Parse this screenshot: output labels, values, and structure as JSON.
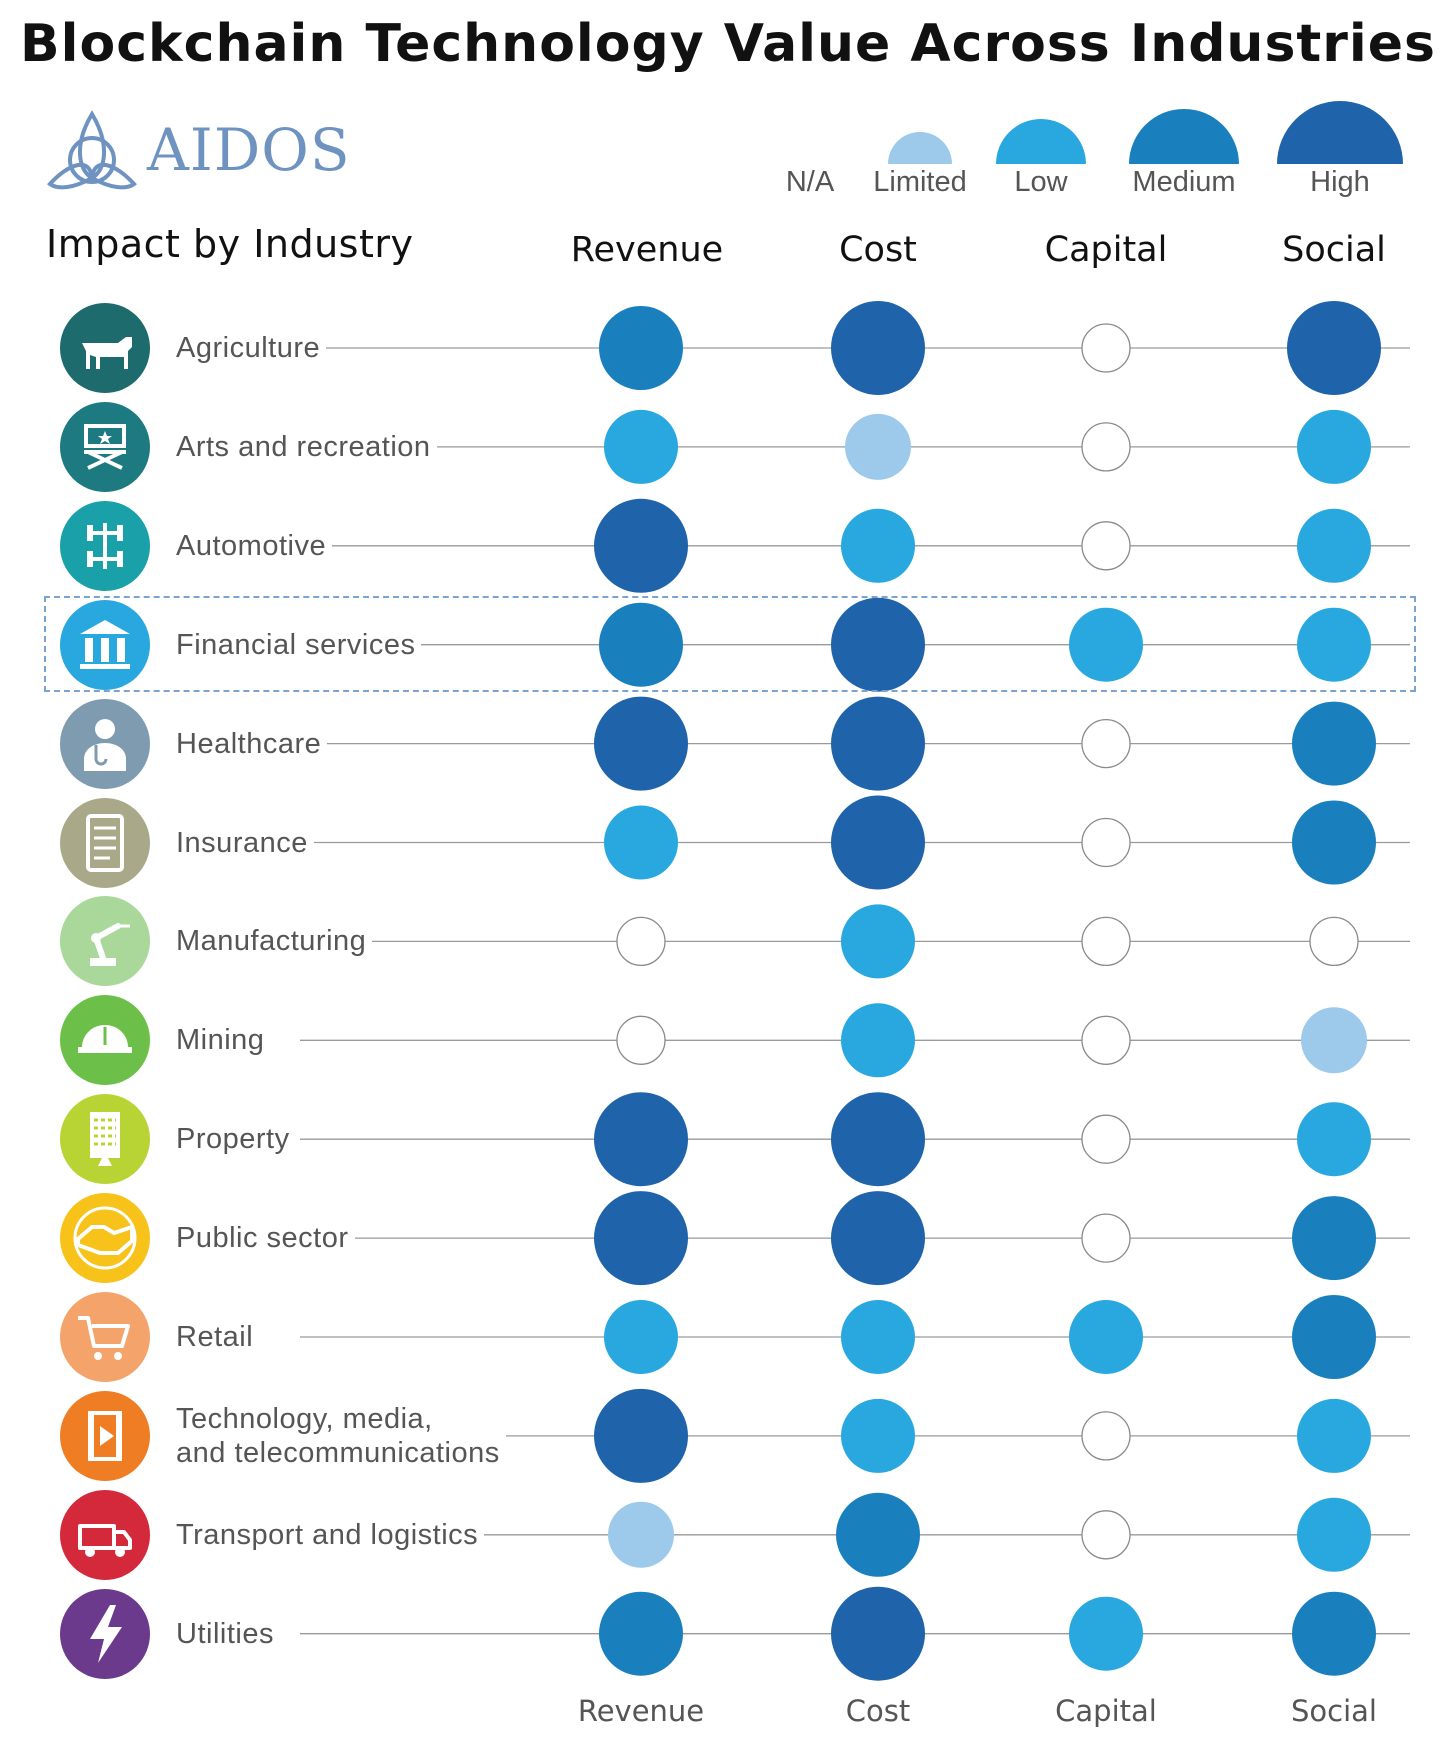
{
  "title": "Blockchain Technology Value Across Industries",
  "logo": {
    "text": "AIDOS"
  },
  "subtitle": "Impact by Industry",
  "legend": [
    {
      "label": "N/A",
      "level": 0
    },
    {
      "label": "Limited",
      "level": 1
    },
    {
      "label": "Low",
      "level": 2
    },
    {
      "label": "Medium",
      "level": 3
    },
    {
      "label": "High",
      "level": 4
    }
  ],
  "colors": {
    "na_fill": "#ffffff",
    "na_stroke": "#8a8a8a",
    "limited": "#9dcaea",
    "low": "#29a8e0",
    "medium": "#1a80bd",
    "high": "#1f63aa",
    "line": "#9a9a9a",
    "highlight": "#7aa3cf"
  },
  "chart_data": {
    "type": "table",
    "title": "Blockchain Technology Value Across Industries",
    "columns": [
      "Revenue",
      "Cost",
      "Capital",
      "Social"
    ],
    "scale": [
      "N/A",
      "Limited",
      "Low",
      "Medium",
      "High"
    ],
    "highlighted_row": "Financial services",
    "rows": [
      {
        "industry": "Agriculture",
        "icon": "cow-icon",
        "icon_color": "#1e6b6e",
        "values": [
          "Medium",
          "High",
          "N/A",
          "High"
        ]
      },
      {
        "industry": "Arts and recreation",
        "icon": "director-chair-icon",
        "icon_color": "#1d7a80",
        "values": [
          "Low",
          "Limited",
          "N/A",
          "Low"
        ]
      },
      {
        "industry": "Automotive",
        "icon": "car-chassis-icon",
        "icon_color": "#1aa0a8",
        "values": [
          "High",
          "Low",
          "N/A",
          "Low"
        ]
      },
      {
        "industry": "Financial services",
        "icon": "bank-icon",
        "icon_color": "#29a8e0",
        "values": [
          "Medium",
          "High",
          "Low",
          "Low"
        ]
      },
      {
        "industry": "Healthcare",
        "icon": "doctor-icon",
        "icon_color": "#7f9bb0",
        "values": [
          "High",
          "High",
          "N/A",
          "Medium"
        ]
      },
      {
        "industry": "Insurance",
        "icon": "tablet-checklist-icon",
        "icon_color": "#a9a98a",
        "values": [
          "Low",
          "High",
          "N/A",
          "Medium"
        ]
      },
      {
        "industry": "Manufacturing",
        "icon": "robot-arm-icon",
        "icon_color": "#a9d89a",
        "values": [
          "N/A",
          "Low",
          "N/A",
          "N/A"
        ]
      },
      {
        "industry": "Mining",
        "icon": "hard-hat-icon",
        "icon_color": "#6cc04a",
        "values": [
          "N/A",
          "Low",
          "N/A",
          "Limited"
        ]
      },
      {
        "industry": "Property",
        "icon": "building-icon",
        "icon_color": "#b8d434",
        "values": [
          "High",
          "High",
          "N/A",
          "Low"
        ]
      },
      {
        "industry": "Public sector",
        "icon": "handshake-icon",
        "icon_color": "#f7c21a",
        "values": [
          "High",
          "High",
          "N/A",
          "Medium"
        ]
      },
      {
        "industry": "Retail",
        "icon": "shopping-cart-icon",
        "icon_color": "#f4a46a",
        "values": [
          "Low",
          "Low",
          "Low",
          "Medium"
        ]
      },
      {
        "industry": "Technology, media,\nand telecommunications",
        "icon": "film-play-icon",
        "icon_color": "#ee7d24",
        "values": [
          "High",
          "Low",
          "N/A",
          "Low"
        ]
      },
      {
        "industry": "Transport and logistics",
        "icon": "truck-icon",
        "icon_color": "#d4293b",
        "values": [
          "Limited",
          "Medium",
          "N/A",
          "Low"
        ]
      },
      {
        "industry": "Utilities",
        "icon": "lightning-icon",
        "icon_color": "#6b3a8c",
        "values": [
          "Medium",
          "High",
          "Low",
          "Medium"
        ]
      }
    ]
  }
}
